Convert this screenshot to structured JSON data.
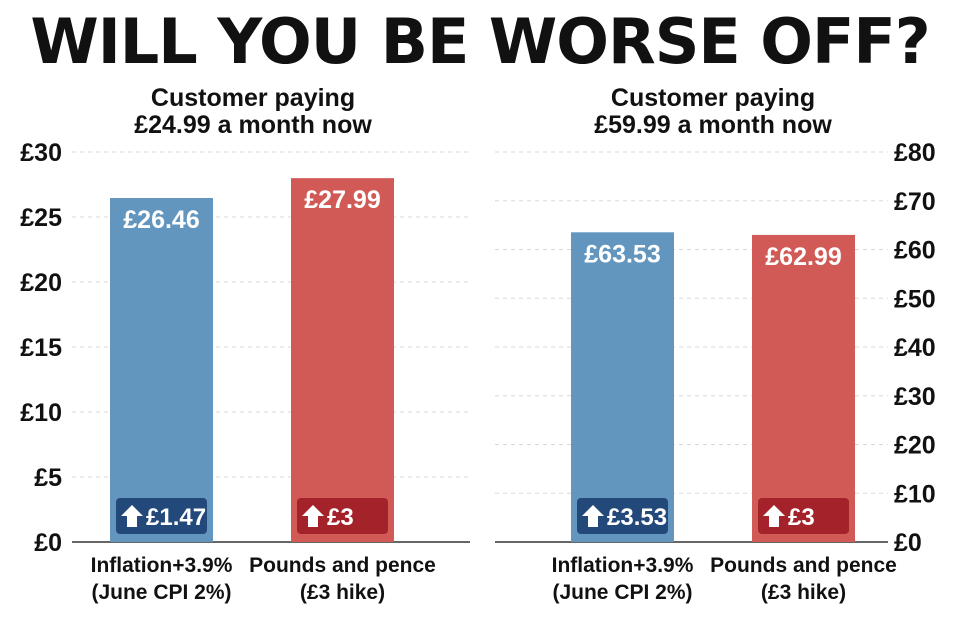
{
  "headline": "WILL YOU BE WORSE OFF?",
  "colors": {
    "inflation": "#6296be",
    "pounds": "#d15a56",
    "badge_blue": "#22497a",
    "badge_red": "#a4222a",
    "grid": "#d8d8d8",
    "text": "#111111"
  },
  "chart_data": [
    {
      "type": "bar",
      "title": "Customer paying\n£24.99 a month now",
      "categories": [
        "Inflation+3.9%\n(June CPI 2%)",
        "Pounds and pence\n(£3 hike)"
      ],
      "values": [
        26.46,
        27.99
      ],
      "value_labels": [
        "£26.46",
        "£27.99"
      ],
      "increase_labels": [
        "£1.47",
        "£3"
      ],
      "ylim": [
        0,
        30
      ],
      "yticks": [
        0,
        5,
        10,
        15,
        20,
        25,
        30
      ],
      "ytick_labels": [
        "£0",
        "£5",
        "£10",
        "£15",
        "£20",
        "£25",
        "£30"
      ],
      "axis_side": "left",
      "grid": true
    },
    {
      "type": "bar",
      "title": "Customer paying\n£59.99 a month now",
      "categories": [
        "Inflation+3.9%\n(June CPI 2%)",
        "Pounds and pence\n(£3 hike)"
      ],
      "values": [
        63.53,
        62.99
      ],
      "value_labels": [
        "£63.53",
        "£62.99"
      ],
      "increase_labels": [
        "£3.53",
        "£3"
      ],
      "ylim": [
        0,
        80
      ],
      "yticks": [
        0,
        10,
        20,
        30,
        40,
        50,
        60,
        70,
        80
      ],
      "ytick_labels": [
        "£0",
        "£10",
        "£20",
        "£30",
        "£40",
        "£50",
        "£60",
        "£70",
        "£80"
      ],
      "axis_side": "right",
      "grid": true
    }
  ]
}
